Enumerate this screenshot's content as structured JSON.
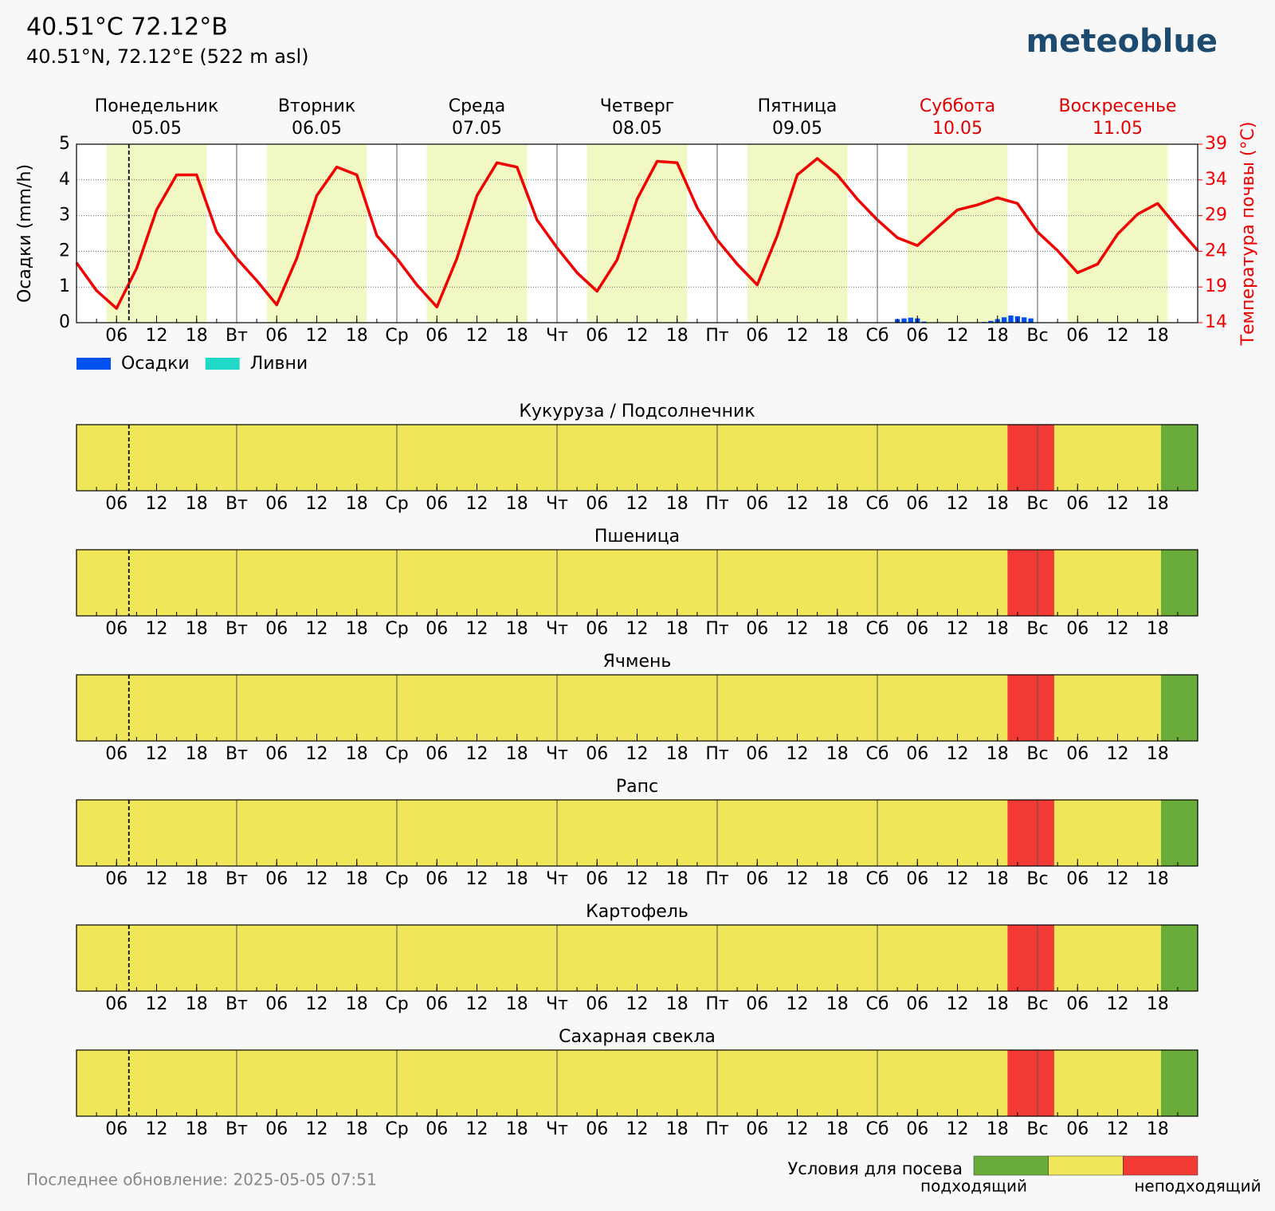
{
  "header": {
    "title": "40.51°C 72.12°В",
    "subtitle": "40.51°N, 72.12°E (522 m asl)",
    "logo": "meteoblue"
  },
  "chart_data": [
    {
      "type": "meteogram",
      "days": [
        "Понедельник",
        "Вторник",
        "Среда",
        "Четверг",
        "Пятница",
        "Суббота",
        "Воскресенье"
      ],
      "dates": [
        "05.05",
        "06.05",
        "07.05",
        "08.05",
        "09.05",
        "10.05",
        "11.05"
      ],
      "day_colors": [
        "#000000",
        "#000000",
        "#000000",
        "#000000",
        "#000000",
        "#e00000",
        "#e00000"
      ],
      "xlim": [
        0,
        168
      ],
      "xticks": [
        {
          "value": 6,
          "label": "06"
        },
        {
          "value": 12,
          "label": "12"
        },
        {
          "value": 18,
          "label": "18"
        },
        {
          "value": 24,
          "label": "Вт"
        },
        {
          "value": 30,
          "label": "06"
        },
        {
          "value": 36,
          "label": "12"
        },
        {
          "value": 42,
          "label": "18"
        },
        {
          "value": 48,
          "label": "Ср"
        },
        {
          "value": 54,
          "label": "06"
        },
        {
          "value": 60,
          "label": "12"
        },
        {
          "value": 66,
          "label": "18"
        },
        {
          "value": 72,
          "label": "Чт"
        },
        {
          "value": 78,
          "label": "06"
        },
        {
          "value": 84,
          "label": "12"
        },
        {
          "value": 90,
          "label": "18"
        },
        {
          "value": 96,
          "label": "Пт"
        },
        {
          "value": 102,
          "label": "06"
        },
        {
          "value": 108,
          "label": "12"
        },
        {
          "value": 114,
          "label": "18"
        },
        {
          "value": 120,
          "label": "Сб"
        },
        {
          "value": 126,
          "label": "06"
        },
        {
          "value": 132,
          "label": "12"
        },
        {
          "value": 138,
          "label": "18"
        },
        {
          "value": 144,
          "label": "Вс"
        },
        {
          "value": 150,
          "label": "06"
        },
        {
          "value": 156,
          "label": "12"
        },
        {
          "value": 162,
          "label": "18"
        }
      ],
      "ylim": [
        0,
        5
      ],
      "yticks": [
        0,
        1,
        2,
        3,
        4,
        5
      ],
      "y2lim": [
        14,
        39
      ],
      "y2ticks": [
        14,
        19,
        24,
        29,
        34,
        39
      ],
      "ylabel": "Осадки (mm/h)",
      "y2label": "Температура почвы (°C)",
      "grid": true,
      "daylight": [
        [
          4.5,
          19.5
        ],
        [
          28.5,
          43.5
        ],
        [
          52.5,
          67.5
        ],
        [
          76.5,
          91.5
        ],
        [
          100.5,
          115.5
        ],
        [
          124.5,
          139.5
        ],
        [
          148.5,
          163.5
        ]
      ],
      "daylight_color": "#f1f8c4",
      "now": 7.85,
      "series": [
        {
          "name": "Осадки",
          "color": "#0050f0",
          "kind": "bar",
          "x": [
            123,
            124,
            125,
            126,
            127,
            136,
            137,
            138,
            139,
            140,
            141,
            142,
            143
          ],
          "values": [
            0.1,
            0.12,
            0.14,
            0.12,
            0.03,
            0.02,
            0.05,
            0.1,
            0.15,
            0.2,
            0.18,
            0.15,
            0.12
          ]
        },
        {
          "name": "Ливни",
          "color": "#20d8c8",
          "kind": "bar",
          "x": [
            123,
            124,
            125,
            126,
            127,
            136,
            137,
            138,
            139,
            140,
            141,
            142,
            143
          ],
          "values": [
            0,
            0,
            0,
            0,
            0,
            0,
            0,
            0,
            0,
            0,
            0,
            0,
            0
          ]
        },
        {
          "kind": "line",
          "axis": "y2",
          "color": "#f00000",
          "x": [
            0,
            3,
            6,
            9,
            12,
            15,
            18,
            21,
            24,
            27,
            30,
            33,
            36,
            39,
            42,
            45,
            48,
            51,
            54,
            57,
            60,
            63,
            66,
            69,
            72,
            75,
            78,
            81,
            84,
            87,
            90,
            93,
            96,
            99,
            102,
            105,
            108,
            111,
            114,
            117,
            120,
            123,
            126,
            129,
            132,
            135,
            138,
            141,
            144,
            147,
            150,
            153,
            156,
            159,
            162,
            165,
            168
          ],
          "values": [
            22.4,
            18.5,
            16.0,
            21.6,
            29.8,
            34.7,
            34.7,
            26.7,
            23.0,
            19.9,
            16.5,
            23.0,
            31.8,
            35.8,
            34.7,
            26.2,
            23.0,
            19.3,
            16.2,
            23.0,
            31.8,
            36.4,
            35.8,
            28.4,
            24.5,
            21.0,
            18.4,
            22.8,
            31.3,
            36.6,
            36.4,
            30.1,
            25.6,
            22.2,
            19.3,
            26.2,
            34.7,
            37.0,
            34.7,
            31.3,
            28.4,
            25.9,
            24.8,
            27.3,
            29.8,
            30.5,
            31.5,
            30.7,
            26.7,
            24.1,
            21.0,
            22.2,
            26.4,
            29.2,
            30.7,
            27.3,
            24.1
          ]
        }
      ]
    },
    {
      "type": "timeline",
      "title": "Кукуруза / Подсолнечник",
      "intervals": [
        [
          0,
          139.5
        ],
        [
          139.5,
          146.5
        ],
        [
          146.5,
          162.5
        ],
        [
          162.5,
          168
        ]
      ],
      "colors": [
        "#f0e65a",
        "#f43a35",
        "#f0e65a",
        "#6aac3a"
      ]
    },
    {
      "type": "timeline",
      "title": "Пшеница",
      "intervals": [
        [
          0,
          139.5
        ],
        [
          139.5,
          146.5
        ],
        [
          146.5,
          162.5
        ],
        [
          162.5,
          168
        ]
      ],
      "colors": [
        "#f0e65a",
        "#f43a35",
        "#f0e65a",
        "#6aac3a"
      ]
    },
    {
      "type": "timeline",
      "title": "Ячмень",
      "intervals": [
        [
          0,
          139.5
        ],
        [
          139.5,
          146.5
        ],
        [
          146.5,
          162.5
        ],
        [
          162.5,
          168
        ]
      ],
      "colors": [
        "#f0e65a",
        "#f43a35",
        "#f0e65a",
        "#6aac3a"
      ]
    },
    {
      "type": "timeline",
      "title": "Рапс",
      "intervals": [
        [
          0,
          139.5
        ],
        [
          139.5,
          146.5
        ],
        [
          146.5,
          162.5
        ],
        [
          162.5,
          168
        ]
      ],
      "colors": [
        "#f0e65a",
        "#f43a35",
        "#f0e65a",
        "#6aac3a"
      ]
    },
    {
      "type": "timeline",
      "title": "Картофель",
      "intervals": [
        [
          0,
          139.5
        ],
        [
          139.5,
          146.5
        ],
        [
          146.5,
          162.5
        ],
        [
          162.5,
          168
        ]
      ],
      "colors": [
        "#f0e65a",
        "#f43a35",
        "#f0e65a",
        "#6aac3a"
      ]
    },
    {
      "type": "timeline",
      "title": "Сахарная свекла",
      "intervals": [
        [
          0,
          139.5
        ],
        [
          139.5,
          146.5
        ],
        [
          146.5,
          162.5
        ],
        [
          162.5,
          168
        ]
      ],
      "colors": [
        "#f0e65a",
        "#f43a35",
        "#f0e65a",
        "#6aac3a"
      ]
    }
  ],
  "legend": {
    "title": "Условия для посева",
    "good": "подходящий",
    "bad": "неподходящий",
    "colors": [
      "#6aac3a",
      "#f0e65a",
      "#f43a35"
    ]
  },
  "footer": "Последнее обновление: 2025-05-05 07:51"
}
